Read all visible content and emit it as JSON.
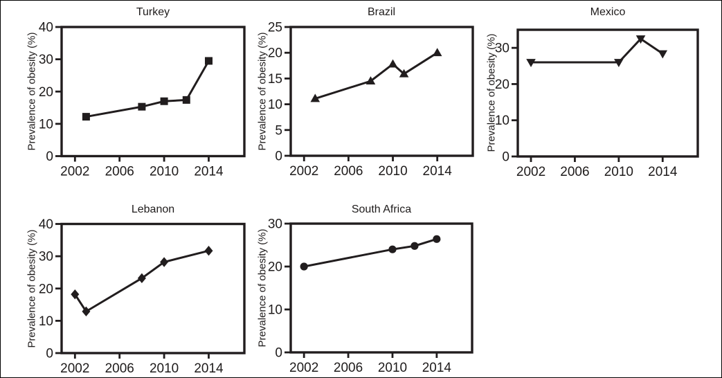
{
  "figure": {
    "background": "#ffffff",
    "frame_color": "#000000",
    "ink_color": "#211d1e",
    "description": "Five line charts showing prevalence of obesity (%) over time by country"
  },
  "chart_data": [
    {
      "id": "turkey",
      "type": "line",
      "title": "Turkey",
      "ylabel": "Prevalence of obesity (%)",
      "xlabel": "",
      "marker": "square",
      "x": [
        2003,
        2008,
        2010,
        2012,
        2014
      ],
      "y": [
        12.2,
        15.3,
        17.0,
        17.4,
        29.5
      ],
      "xticks": [
        2002,
        2006,
        2010,
        2014
      ],
      "yticks": [
        0,
        10,
        20,
        30,
        40
      ],
      "xlim": [
        2000.8,
        2017.2
      ],
      "ylim": [
        0,
        40
      ],
      "grid": false,
      "legend": "none"
    },
    {
      "id": "brazil",
      "type": "line",
      "title": "Brazil",
      "ylabel": "Prevalence of obesity (%)",
      "xlabel": "",
      "marker": "triangle-up",
      "x": [
        2003,
        2008,
        2010,
        2011,
        2014
      ],
      "y": [
        11.1,
        14.5,
        17.8,
        15.9,
        20.0
      ],
      "xticks": [
        2002,
        2006,
        2010,
        2014
      ],
      "yticks": [
        0,
        5,
        10,
        15,
        20,
        25
      ],
      "xlim": [
        2000.8,
        2017.2
      ],
      "ylim": [
        0,
        25
      ],
      "grid": false,
      "legend": "none"
    },
    {
      "id": "mexico",
      "type": "line",
      "title": "Mexico",
      "ylabel": "Prevalence of obesity (%)",
      "xlabel": "",
      "marker": "triangle-down",
      "x": [
        2002,
        2010,
        2012,
        2014
      ],
      "y": [
        26.0,
        26.0,
        32.5,
        28.4
      ],
      "xticks": [
        2002,
        2006,
        2010,
        2014
      ],
      "yticks": [
        0,
        10,
        20,
        30
      ],
      "xlim": [
        2000.8,
        2017.2
      ],
      "ylim": [
        0,
        35
      ],
      "grid": false,
      "legend": "none"
    },
    {
      "id": "lebanon",
      "type": "line",
      "title": "Lebanon",
      "ylabel": "Prevalence of obesity (%)",
      "xlabel": "",
      "marker": "diamond",
      "x": [
        2002,
        2003,
        2008,
        2010,
        2014
      ],
      "y": [
        18.2,
        12.9,
        23.2,
        28.2,
        31.7
      ],
      "xticks": [
        2002,
        2006,
        2010,
        2014
      ],
      "yticks": [
        0,
        10,
        20,
        30,
        40
      ],
      "xlim": [
        2000.8,
        2017.2
      ],
      "ylim": [
        0,
        40
      ],
      "grid": false,
      "legend": "none"
    },
    {
      "id": "south_africa",
      "type": "line",
      "title": "South Africa",
      "ylabel": "Prevalence of obesity (%)",
      "xlabel": "",
      "marker": "circle",
      "x": [
        2002,
        2010,
        2012,
        2014
      ],
      "y": [
        20.0,
        24.0,
        24.8,
        26.4
      ],
      "xticks": [
        2002,
        2006,
        2010,
        2014
      ],
      "yticks": [
        0,
        10,
        20,
        30
      ],
      "xlim": [
        2000.8,
        2017.2
      ],
      "ylim": [
        0,
        30
      ],
      "grid": false,
      "legend": "none"
    }
  ]
}
